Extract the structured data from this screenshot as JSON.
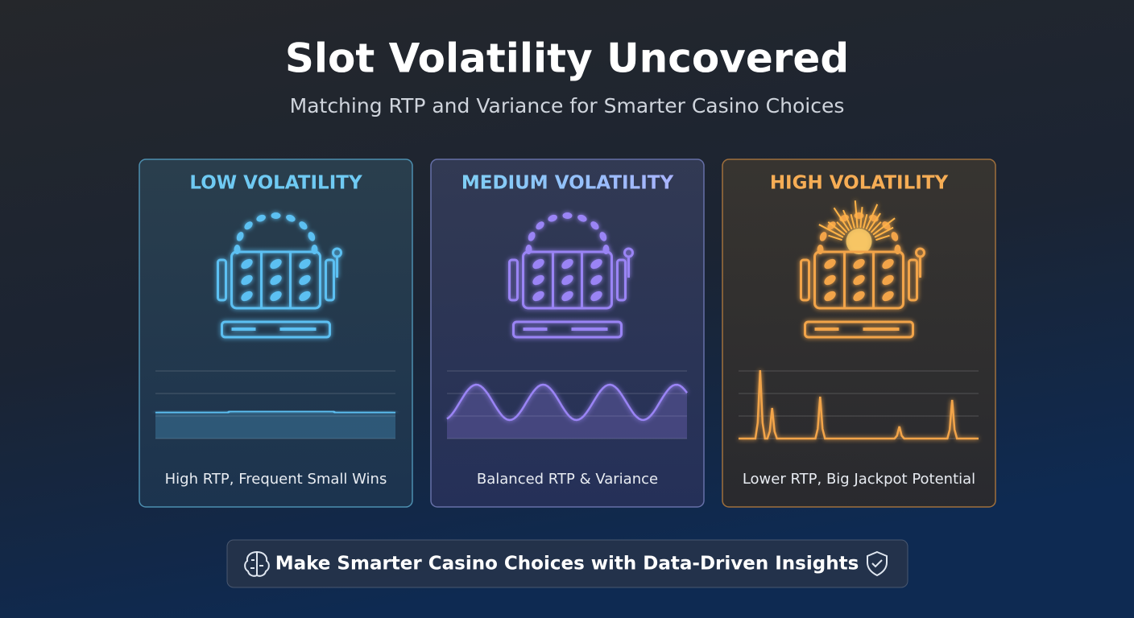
{
  "header": {
    "title": "Slot Volatility Uncovered",
    "subtitle": "Matching RTP and Variance for Smarter Casino Choices"
  },
  "cards": [
    {
      "title": "LOW VOLATILITY",
      "caption": "High RTP, Frequent Small Wins"
    },
    {
      "title": "MEDIUM VOLATILITY",
      "caption": "Balanced RTP & Variance"
    },
    {
      "title": "HIGH VOLATILITY",
      "caption": "Lower RTP, Big Jackpot Potential"
    }
  ],
  "footer": {
    "text": "Make Smarter Casino Choices with Data-Driven Insights"
  }
}
